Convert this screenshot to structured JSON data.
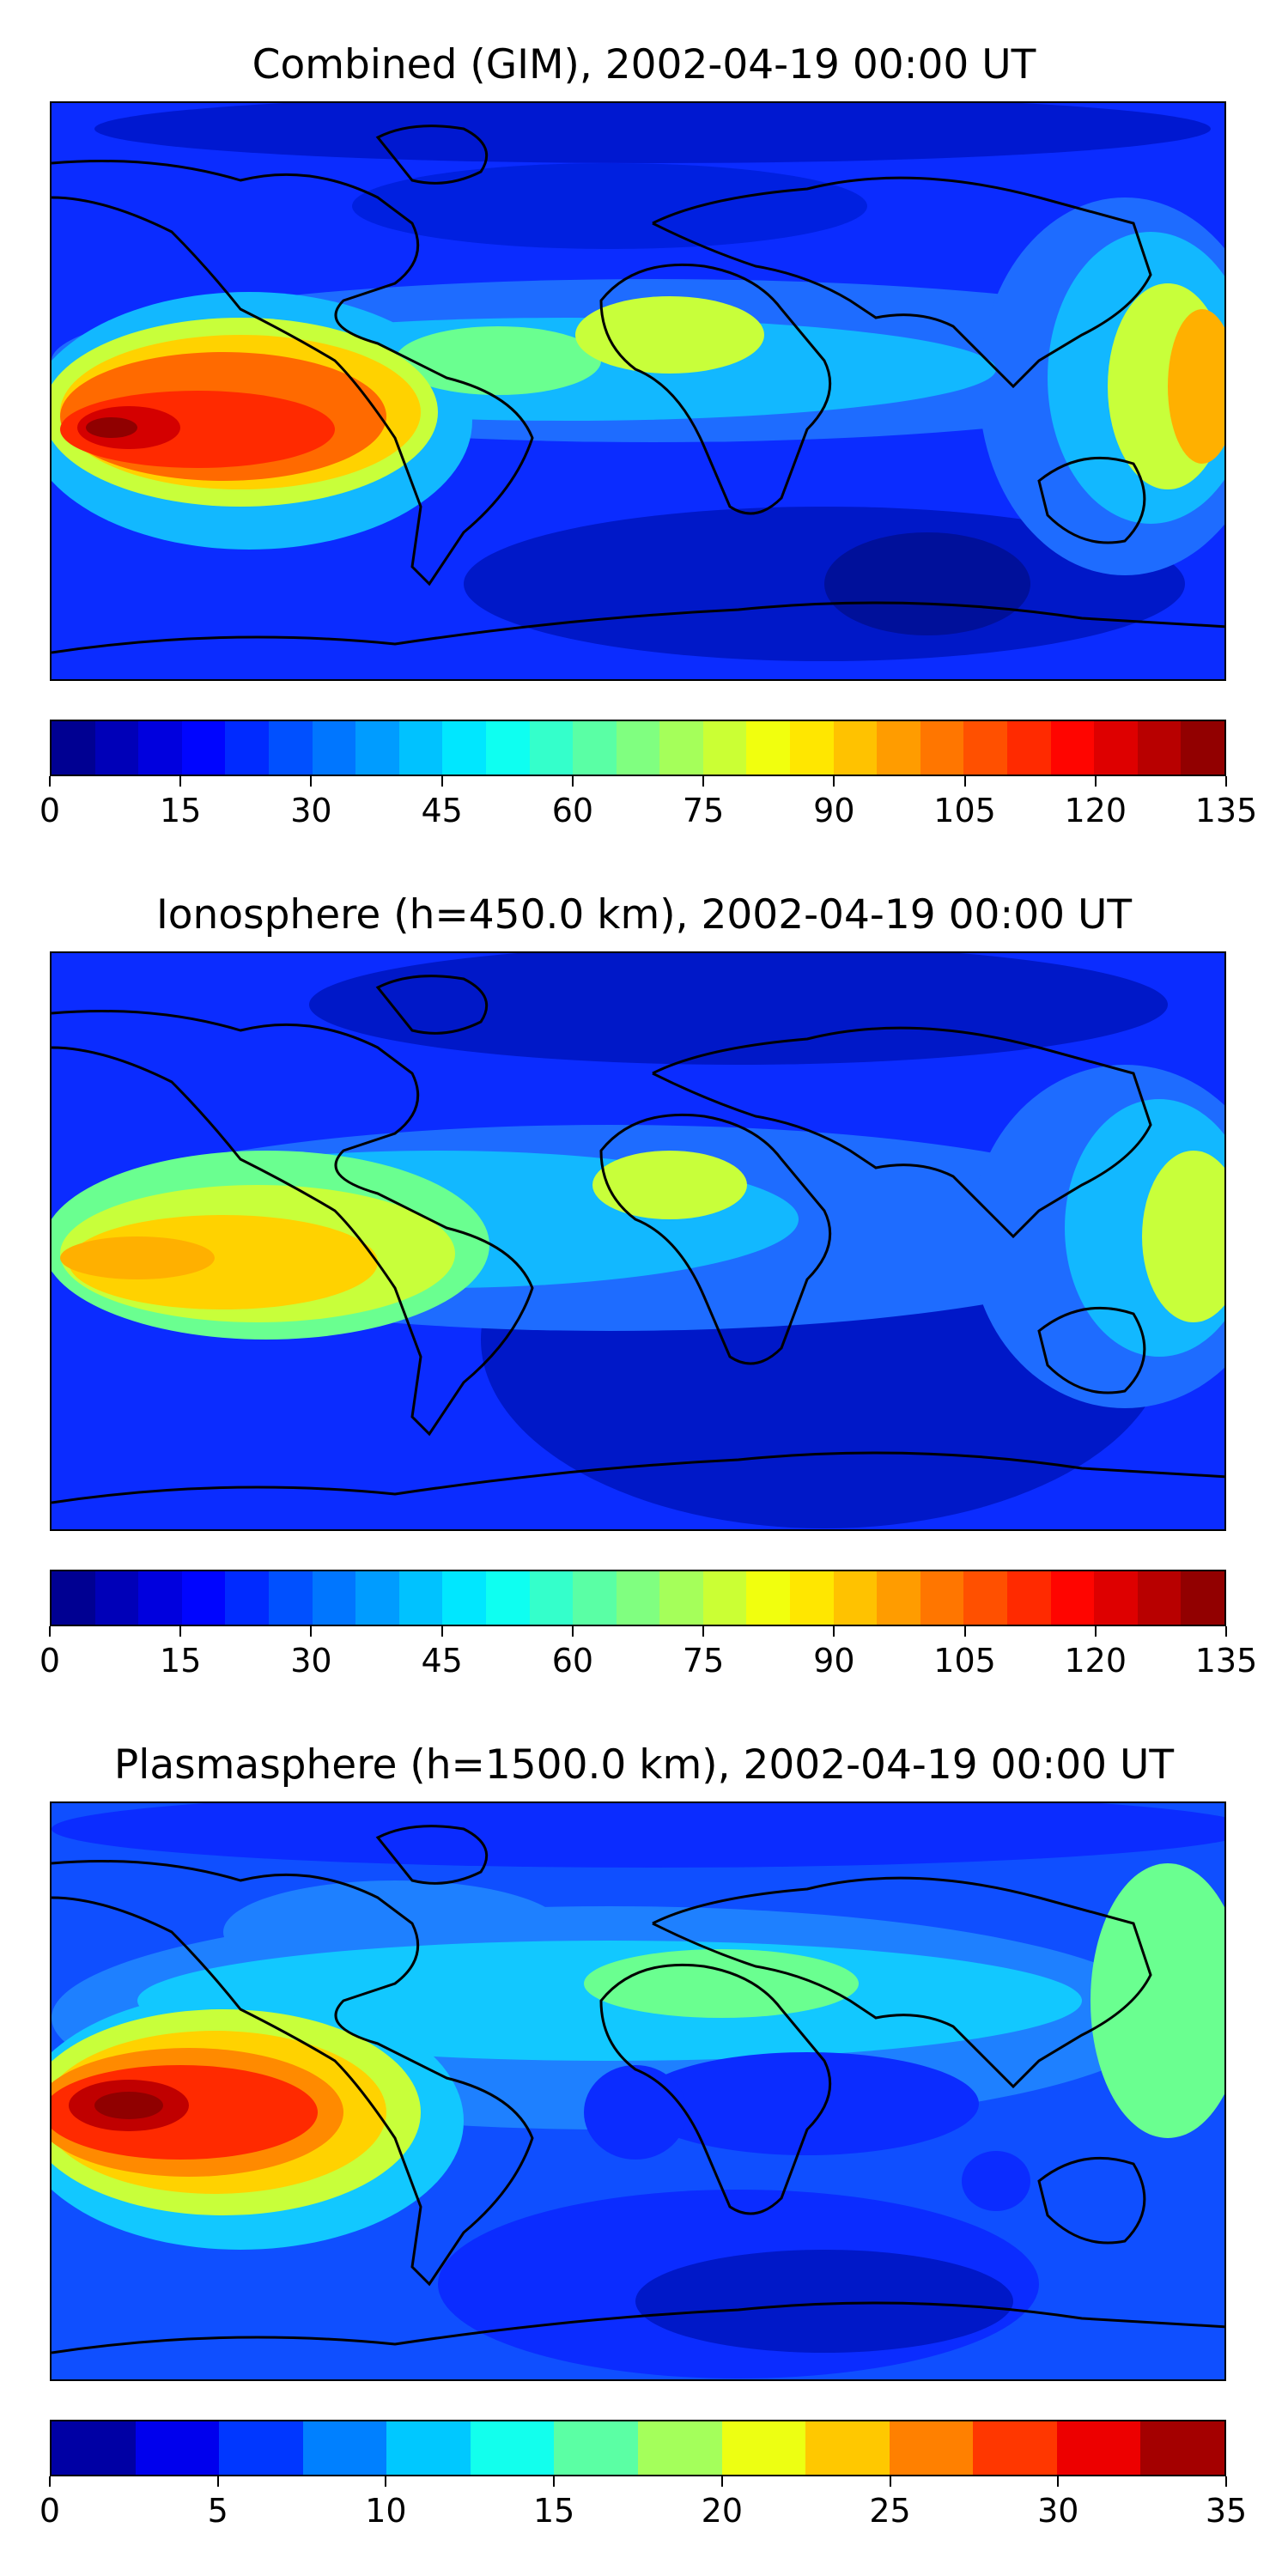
{
  "panels": [
    {
      "title": "Combined (GIM), 2002-04-19 00:00 UT",
      "colorbar": {
        "min": 0,
        "max": 135,
        "levels": 27,
        "ticks": [
          "0",
          "15",
          "30",
          "45",
          "60",
          "75",
          "90",
          "105",
          "120",
          "135"
        ]
      }
    },
    {
      "title": "Ionosphere  (h=450.0 km), 2002-04-19 00:00 UT",
      "colorbar": {
        "min": 0,
        "max": 135,
        "levels": 27,
        "ticks": [
          "0",
          "15",
          "30",
          "45",
          "60",
          "75",
          "90",
          "105",
          "120",
          "135"
        ]
      }
    },
    {
      "title": "Plasmasphere (h=1500.0 km), 2002-04-19 00:00 UT",
      "colorbar": {
        "min": 0,
        "max": 35,
        "levels": 14,
        "ticks": [
          "0",
          "5",
          "10",
          "15",
          "20",
          "25",
          "30",
          "35"
        ]
      }
    }
  ],
  "colormap": "jet",
  "coastline_color": "#000000"
}
